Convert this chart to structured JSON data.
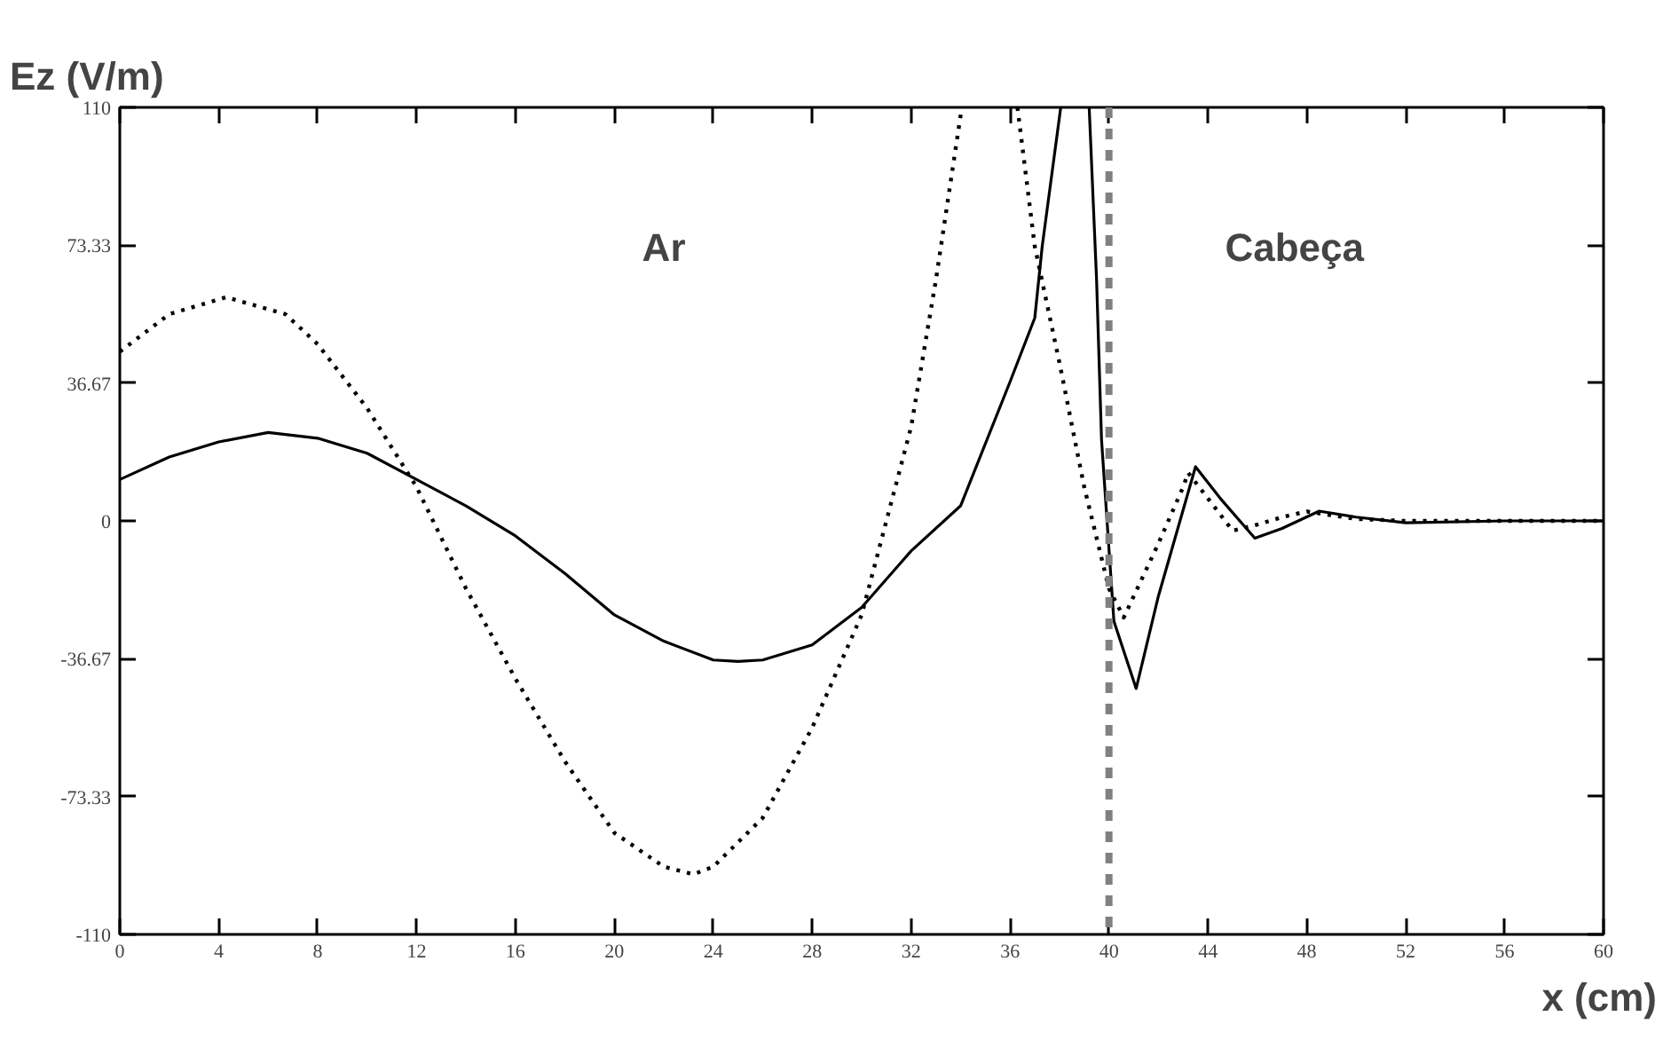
{
  "chart_data": {
    "type": "line",
    "ylabel": "Ez (V/m)",
    "xlabel": "x (cm)",
    "xlim": [
      0,
      60
    ],
    "xticks": [
      0,
      4,
      8,
      12,
      16,
      20,
      24,
      28,
      32,
      36,
      40,
      44,
      48,
      52,
      56,
      60
    ],
    "ylim": [
      -110,
      110
    ],
    "yticks": [
      -110,
      -73.33,
      -36.67,
      0,
      36.67,
      73.33,
      110
    ],
    "marker": "none",
    "series": [
      {
        "color": "#000000",
        "line_style": "solid",
        "x": [
          0,
          2,
          4,
          6,
          8,
          10,
          12,
          14,
          16,
          18,
          20,
          22,
          24,
          25,
          26,
          28,
          30,
          32,
          34,
          36,
          37,
          37.3,
          38.05,
          null,
          39.2,
          39.5,
          39.7,
          40.2,
          41.1,
          42,
          43.5,
          44.5,
          45.9,
          47,
          48.5,
          50,
          52,
          56,
          60
        ],
        "values": [
          11,
          17,
          21,
          23.5,
          22,
          18,
          11,
          4,
          -4,
          -14,
          -25,
          -32,
          -37,
          -37.4,
          -37,
          -33,
          -23,
          -8,
          4,
          37,
          54,
          73,
          110,
          null,
          110,
          64,
          21.5,
          -26.7,
          -44.6,
          -20,
          14.4,
          6,
          -4.6,
          -2,
          2.6,
          1,
          -0.5,
          0,
          0
        ]
      },
      {
        "color": "#000000",
        "line_style": "dotted",
        "x": [
          0,
          2,
          4.3,
          6.7,
          8,
          10,
          12,
          14,
          16,
          18,
          20,
          22,
          23.2,
          24,
          26,
          28,
          30,
          32,
          33,
          34.05,
          null,
          36.3,
          37,
          38,
          39,
          40,
          40.6,
          42,
          43,
          43.2,
          44,
          45,
          46,
          47,
          48,
          50,
          52,
          56,
          60
        ],
        "values": [
          45,
          55,
          59.5,
          55,
          47,
          30,
          9,
          -18,
          -42,
          -64,
          -83,
          -92,
          -94,
          -92,
          -79,
          -55,
          -25,
          25,
          64,
          110,
          null,
          110,
          73,
          42,
          9,
          -18,
          -25.7,
          -6,
          9,
          12.8,
          6,
          -2.6,
          -1,
          1,
          2.5,
          0.5,
          0,
          0,
          0
        ]
      }
    ],
    "ref_lines": [
      {
        "axis": "x",
        "value": 40,
        "color": "#808080",
        "line_style": "dashed"
      }
    ],
    "annotations": [
      "Ar",
      "Cabeça"
    ]
  }
}
